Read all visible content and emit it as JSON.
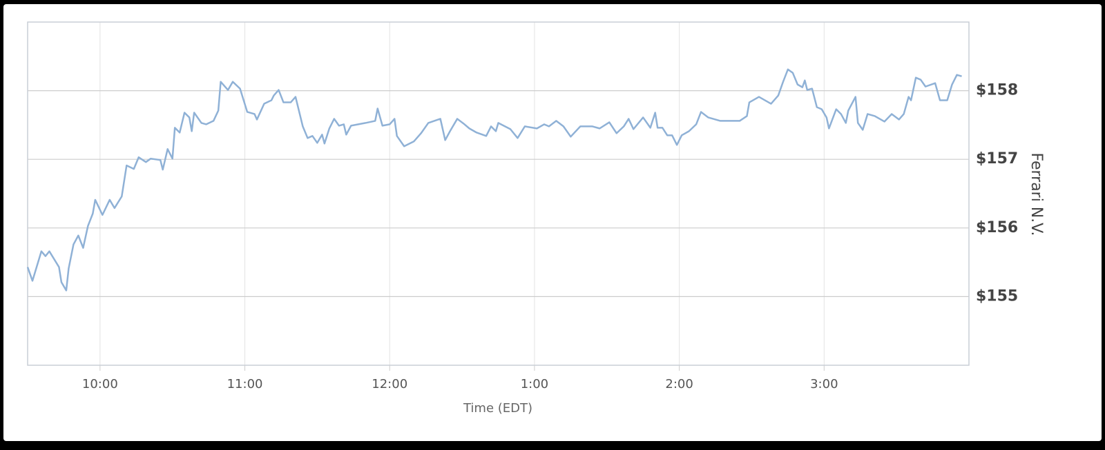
{
  "chart_data": {
    "type": "line",
    "x_label": "Time (EDT)",
    "y_label": "Ferrari N.V.",
    "grid": true,
    "xlim": [
      570,
      960
    ],
    "xticks": [
      {
        "value": 600,
        "label": "10:00"
      },
      {
        "value": 660,
        "label": "11:00"
      },
      {
        "value": 720,
        "label": "12:00"
      },
      {
        "value": 780,
        "label": "1:00"
      },
      {
        "value": 840,
        "label": "2:00"
      },
      {
        "value": 900,
        "label": "3:00"
      }
    ],
    "ylim": [
      154,
      159
    ],
    "yticks": [
      {
        "value": 155,
        "label": "$155"
      },
      {
        "value": 156,
        "label": "$156"
      },
      {
        "value": 157,
        "label": "$157"
      },
      {
        "value": 158,
        "label": "$158"
      }
    ],
    "series": [
      {
        "name": "Ferrari N.V.",
        "color": "#8fb1d6",
        "x": [
          570,
          572,
          575.7,
          577.4,
          579,
          583,
          584,
          586,
          587,
          589,
          591,
          593,
          595,
          597,
          598,
          601,
          604,
          606,
          609,
          611,
          614,
          616,
          619,
          621,
          625,
          626,
          628,
          630,
          631,
          633,
          635,
          637,
          638,
          639,
          642,
          644,
          647,
          649,
          650,
          653,
          655,
          658,
          661,
          664,
          665,
          668,
          671,
          672,
          674,
          676,
          679,
          681,
          684,
          686,
          688,
          690,
          692,
          693,
          695,
          697,
          699,
          701,
          702,
          704,
          710,
          714,
          715,
          717,
          720,
          722,
          723,
          726,
          730,
          733,
          736,
          741,
          743,
          745,
          748,
          751,
          753,
          756,
          760,
          762,
          764,
          765,
          770,
          773,
          776,
          781,
          784,
          786,
          789,
          792,
          795,
          799,
          804,
          807,
          811,
          814,
          817,
          819,
          821,
          825,
          828,
          830,
          831,
          833,
          835,
          837,
          839,
          841,
          844,
          847,
          849,
          852,
          857,
          865,
          868,
          869,
          873,
          878,
          881,
          883,
          885,
          887,
          889,
          891,
          892,
          893,
          895,
          897,
          899,
          901,
          902,
          905,
          907,
          909,
          910,
          913,
          914,
          916,
          918,
          921,
          925,
          928,
          931,
          933,
          935,
          936,
          938,
          940,
          942,
          946,
          948,
          951,
          953,
          955,
          957
        ],
        "values": [
          155.43,
          155.23,
          155.66,
          155.59,
          155.66,
          155.43,
          155.21,
          155.09,
          155.41,
          155.76,
          155.89,
          155.71,
          156.03,
          156.21,
          156.41,
          156.19,
          156.41,
          156.29,
          156.46,
          156.91,
          156.86,
          157.03,
          156.96,
          157.01,
          156.99,
          156.85,
          157.15,
          157.01,
          157.46,
          157.39,
          157.68,
          157.61,
          157.41,
          157.68,
          157.53,
          157.51,
          157.56,
          157.71,
          158.13,
          158.01,
          158.13,
          158.03,
          157.69,
          157.66,
          157.58,
          157.81,
          157.86,
          157.93,
          158.01,
          157.83,
          157.83,
          157.91,
          157.48,
          157.31,
          157.34,
          157.24,
          157.36,
          157.23,
          157.45,
          157.59,
          157.49,
          157.51,
          157.36,
          157.49,
          157.53,
          157.56,
          157.74,
          157.49,
          157.51,
          157.59,
          157.34,
          157.19,
          157.26,
          157.38,
          157.53,
          157.59,
          157.28,
          157.41,
          157.59,
          157.51,
          157.45,
          157.39,
          157.34,
          157.48,
          157.41,
          157.53,
          157.44,
          157.31,
          157.48,
          157.45,
          157.51,
          157.48,
          157.56,
          157.48,
          157.33,
          157.48,
          157.48,
          157.45,
          157.54,
          157.38,
          157.48,
          157.59,
          157.44,
          157.61,
          157.46,
          157.68,
          157.46,
          157.46,
          157.35,
          157.35,
          157.21,
          157.35,
          157.41,
          157.51,
          157.69,
          157.61,
          157.56,
          157.56,
          157.63,
          157.83,
          157.91,
          157.81,
          157.93,
          158.13,
          158.31,
          158.26,
          158.09,
          158.05,
          158.15,
          158.01,
          158.03,
          157.76,
          157.73,
          157.61,
          157.45,
          157.73,
          157.66,
          157.53,
          157.71,
          157.91,
          157.53,
          157.43,
          157.66,
          157.63,
          157.55,
          157.66,
          157.58,
          157.66,
          157.91,
          157.86,
          158.19,
          158.16,
          158.06,
          158.11,
          157.86,
          157.86,
          158.09,
          158.23,
          158.21
        ]
      }
    ]
  }
}
